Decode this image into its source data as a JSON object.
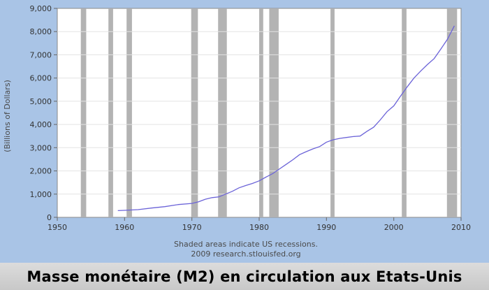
{
  "caption": "Masse monétaire (M2) en circulation aux Etats-Unis",
  "chart_data": {
    "type": "line",
    "title": "",
    "xlabel": "",
    "ylabel": "(Billions of Dollars)",
    "xlim": [
      1950,
      2010
    ],
    "ylim": [
      0,
      9000
    ],
    "x_ticks": [
      1950,
      1960,
      1970,
      1980,
      1990,
      2000,
      2010
    ],
    "y_ticks": [
      0,
      1000,
      2000,
      3000,
      4000,
      5000,
      6000,
      7000,
      8000,
      9000
    ],
    "x_tick_labels": [
      "1950",
      "1960",
      "1970",
      "1980",
      "1990",
      "2000",
      "2010"
    ],
    "y_tick_labels": [
      "0",
      "1,000",
      "2,000",
      "3,000",
      "4,000",
      "5,000",
      "6,000",
      "7,000",
      "8,000",
      "9,000"
    ],
    "grid": true,
    "line_color": "#6b63d8",
    "recession_color": "#b3b3b3",
    "recessions": [
      [
        1953.5,
        1954.3
      ],
      [
        1957.6,
        1958.3
      ],
      [
        1960.3,
        1961.1
      ],
      [
        1969.9,
        1970.9
      ],
      [
        1973.9,
        1975.2
      ],
      [
        1980.0,
        1980.6
      ],
      [
        1981.5,
        1982.9
      ],
      [
        1990.6,
        1991.2
      ],
      [
        2001.2,
        2001.9
      ],
      [
        2007.9,
        2009.4
      ]
    ],
    "notes": [
      "Shaded areas indicate US recessions.",
      "2009 research.stlouisfed.org"
    ],
    "series": [
      {
        "x": [
          1959,
          1960,
          1962,
          1964,
          1966,
          1968,
          1970,
          1971,
          1972,
          1973,
          1974,
          1975,
          1976,
          1977,
          1978,
          1979,
          1980,
          1981,
          1982,
          1983,
          1984,
          1985,
          1986,
          1987,
          1988,
          1989,
          1990,
          1991,
          1992,
          1993,
          1994,
          1995,
          1996,
          1997,
          1998,
          1999,
          2000,
          2001,
          2002,
          2003,
          2004,
          2005,
          2006,
          2007,
          2008,
          2009
        ],
        "y": [
          290,
          300,
          330,
          400,
          460,
          550,
          600,
          670,
          780,
          850,
          880,
          1000,
          1120,
          1270,
          1370,
          1460,
          1570,
          1730,
          1880,
          2080,
          2280,
          2480,
          2700,
          2830,
          2950,
          3050,
          3240,
          3340,
          3400,
          3440,
          3480,
          3500,
          3700,
          3880,
          4200,
          4550,
          4800,
          5220,
          5620,
          6000,
          6300,
          6580,
          6840,
          7250,
          7680,
          8250
        ]
      }
    ]
  }
}
